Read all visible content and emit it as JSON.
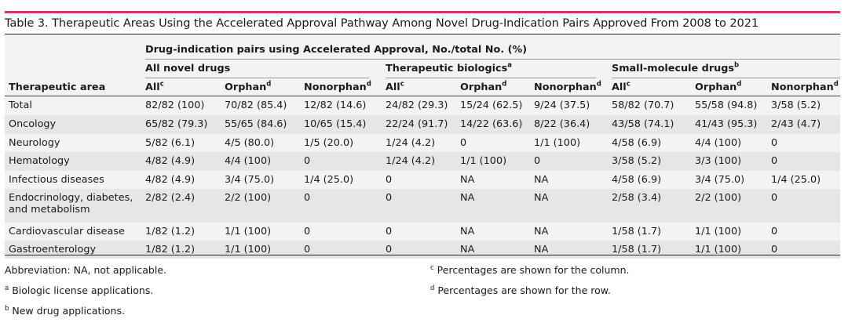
{
  "title": "Table 3. Therapeutic Areas Using the Accelerated Approval Pathway Among Novel Drug-Indication Pairs Approved From 2008 to 2021",
  "header": {
    "group_label": "Drug-indication pairs using Accelerated Approval, No./total No. (%)",
    "row_header": "Therapeutic area",
    "groups": [
      {
        "label": "All novel drugs",
        "sup": ""
      },
      {
        "label": "Therapeutic biologics",
        "sup": "a"
      },
      {
        "label": "Small-molecule drugs",
        "sup": "b"
      }
    ],
    "columns": [
      {
        "label": "All",
        "sup": "c"
      },
      {
        "label": "Orphan",
        "sup": "d"
      },
      {
        "label": "Nonorphan",
        "sup": "d"
      },
      {
        "label": "All",
        "sup": "c"
      },
      {
        "label": "Orphan",
        "sup": "d"
      },
      {
        "label": "Nonorphan",
        "sup": "d"
      },
      {
        "label": "All",
        "sup": "c"
      },
      {
        "label": "Orphan",
        "sup": "d"
      },
      {
        "label": "Nonorphan",
        "sup": "d"
      }
    ]
  },
  "rows": [
    {
      "area": [
        "Total"
      ],
      "values": [
        "82/82 (100)",
        "70/82 (85.4)",
        "12/82 (14.6)",
        "24/82 (29.3)",
        "15/24 (62.5)",
        "9/24 (37.5)",
        "58/82 (70.7)",
        "55/58 (94.8)",
        "3/58 (5.2)"
      ]
    },
    {
      "area": [
        "Oncology"
      ],
      "values": [
        "65/82 (79.3)",
        "55/65 (84.6)",
        "10/65 (15.4)",
        "22/24 (91.7)",
        "14/22 (63.6)",
        "8/22 (36.4)",
        "43/58 (74.1)",
        "41/43 (95.3)",
        "2/43 (4.7)"
      ]
    },
    {
      "area": [
        "Neurology"
      ],
      "values": [
        "5/82 (6.1)",
        "4/5 (80.0)",
        "1/5 (20.0)",
        "1/24 (4.2)",
        "0",
        "1/1 (100)",
        "4/58 (6.9)",
        "4/4 (100)",
        "0"
      ]
    },
    {
      "area": [
        "Hematology"
      ],
      "values": [
        "4/82 (4.9)",
        "4/4 (100)",
        "0",
        "1/24 (4.2)",
        "1/1 (100)",
        "0",
        "3/58 (5.2)",
        "3/3 (100)",
        "0"
      ]
    },
    {
      "area": [
        "Infectious diseases"
      ],
      "values": [
        "4/82 (4.9)",
        "3/4 (75.0)",
        "1/4 (25.0)",
        "0",
        "NA",
        "NA",
        "4/58 (6.9)",
        "3/4 (75.0)",
        "1/4 (25.0)"
      ]
    },
    {
      "area": [
        "Endocrinology, diabetes,",
        "and metabolism"
      ],
      "values": [
        "2/82 (2.4)",
        "2/2 (100)",
        "0",
        "0",
        "NA",
        "NA",
        "2/58 (3.4)",
        "2/2 (100)",
        "0"
      ]
    },
    {
      "area": [
        "Cardiovascular disease"
      ],
      "values": [
        "1/82 (1.2)",
        "1/1 (100)",
        "0",
        "0",
        "NA",
        "NA",
        "1/58 (1.7)",
        "1/1 (100)",
        "0"
      ]
    },
    {
      "area": [
        "Gastroenterology"
      ],
      "values": [
        "1/82 (1.2)",
        "1/1 (100)",
        "0",
        "0",
        "NA",
        "NA",
        "1/58 (1.7)",
        "1/1 (100)",
        "0"
      ]
    }
  ],
  "footnotes": {
    "abbrev": "Abbreviation: NA, not applicable.",
    "a": {
      "mark": "a",
      "text": "Biologic license applications."
    },
    "b": {
      "mark": "b",
      "text": "New drug applications."
    },
    "c": {
      "mark": "c",
      "text": "Percentages are shown for the column."
    },
    "d": {
      "mark": "d",
      "text": "Percentages are shown for the row."
    }
  }
}
